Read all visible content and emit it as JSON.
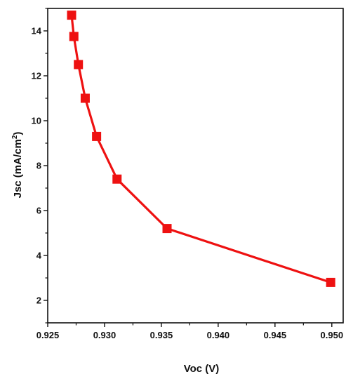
{
  "chart_data": {
    "type": "line",
    "title": "",
    "xlabel": "Voc (V)",
    "ylabel_main": "Jsc (mA/cm",
    "ylabel_sup": "2",
    "ylabel_end": ")",
    "xlim": [
      0.925,
      0.951
    ],
    "ylim": [
      1.0,
      15.0
    ],
    "x_ticks": [
      0.925,
      0.93,
      0.935,
      0.94,
      0.945,
      0.95
    ],
    "x_tick_labels": [
      "0.925",
      "0.930",
      "0.935",
      "0.940",
      "0.945",
      "0.950"
    ],
    "y_ticks": [
      2,
      4,
      6,
      8,
      10,
      12,
      14
    ],
    "y_tick_labels": [
      "2",
      "4",
      "6",
      "8",
      "10",
      "12",
      "14"
    ],
    "series": [
      {
        "color": "#ee1111",
        "marker": "square",
        "x": [
          0.9271,
          0.9273,
          0.9277,
          0.9283,
          0.9293,
          0.9311,
          0.9355,
          0.9499
        ],
        "y": [
          14.7,
          13.75,
          12.5,
          11.0,
          9.3,
          7.4,
          5.2,
          2.8
        ]
      }
    ],
    "grid": false,
    "legend": "none"
  }
}
